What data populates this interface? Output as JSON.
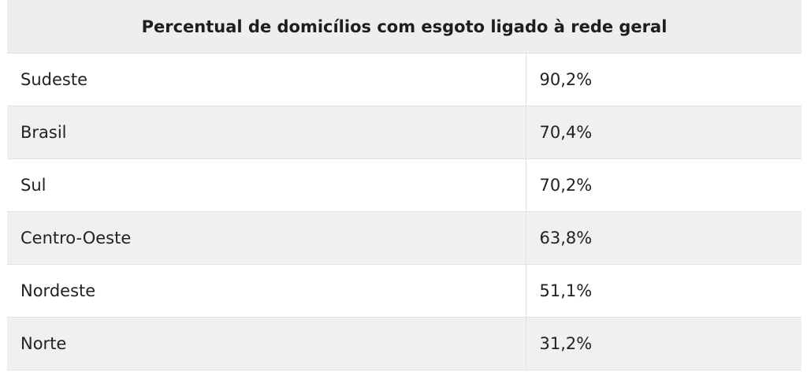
{
  "table": {
    "title": "Percentual de domicílios com esgoto ligado à rede geral",
    "rows": [
      {
        "region": "Sudeste",
        "value": "90,2%"
      },
      {
        "region": "Brasil",
        "value": "70,4%"
      },
      {
        "region": "Sul",
        "value": "70,2%"
      },
      {
        "region": "Centro-Oeste",
        "value": "63,8%"
      },
      {
        "region": "Nordeste",
        "value": "51,1%"
      },
      {
        "region": "Norte",
        "value": "31,2%"
      }
    ]
  },
  "colors": {
    "header_bg": "#eeeeee",
    "row_alt_bg": "#f0f0f0",
    "row_bg": "#ffffff",
    "border": "#e2e2e2",
    "text": "#222222"
  }
}
